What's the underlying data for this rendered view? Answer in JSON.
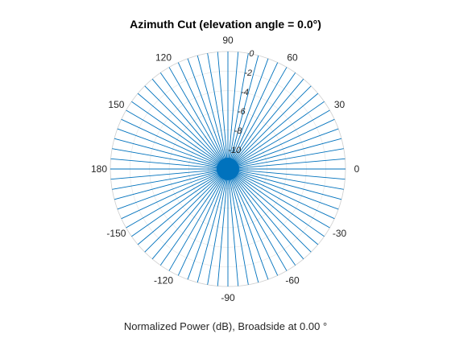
{
  "chart_data": {
    "type": "polar-line",
    "title": "Azimuth Cut (elevation angle = 0.0°)",
    "xlabel": "Normalized Power (dB), Broadside at 0.00 °",
    "theta_ticks": [
      "0",
      "30",
      "60",
      "90",
      "120",
      "150",
      "180",
      "-150",
      "-120",
      "-90",
      "-60",
      "-30"
    ],
    "theta_tick_values": [
      0,
      30,
      60,
      90,
      120,
      150,
      180,
      210,
      240,
      270,
      300,
      330
    ],
    "r_ticks": [
      "0",
      "-2",
      "-4",
      "-6",
      "-8",
      "-10"
    ],
    "r_tick_values": [
      0,
      -2,
      -4,
      -6,
      -8,
      -10
    ],
    "rlim": [
      -12,
      0
    ],
    "grid": true,
    "series": [
      {
        "color": "#0072BD",
        "lobe_count": 72,
        "peak_db": 0,
        "null_db": -12
      }
    ]
  }
}
